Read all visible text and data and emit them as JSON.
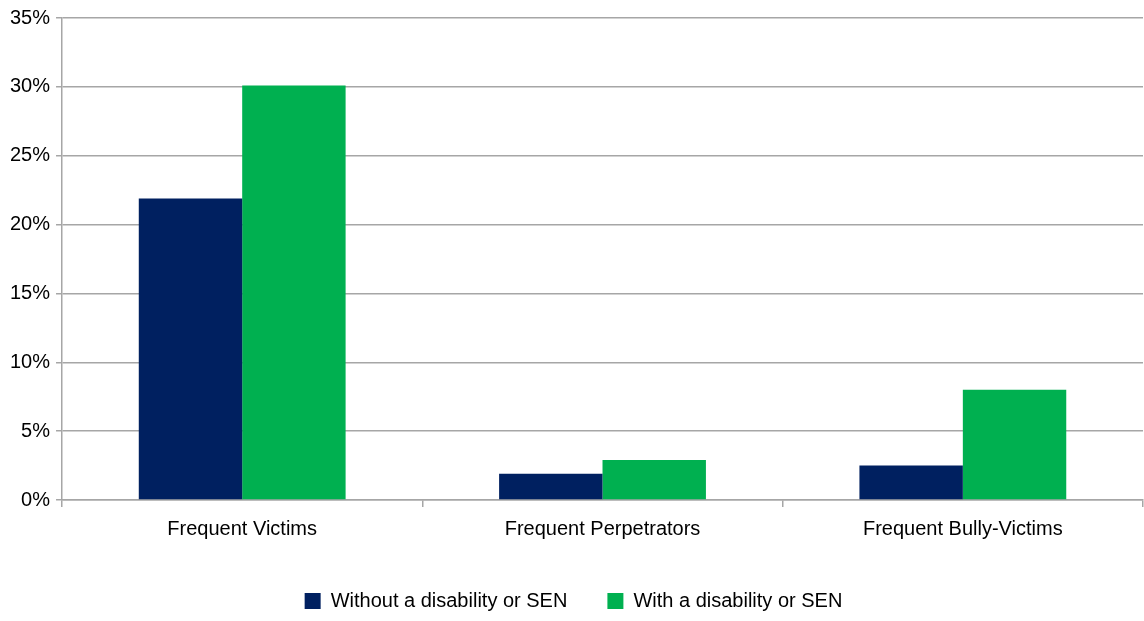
{
  "chart_data": {
    "type": "bar",
    "categories": [
      "Frequent Victims",
      "Frequent Perpetrators",
      "Frequent Bully-Victims"
    ],
    "series": [
      {
        "name": "Without a disability or SEN",
        "color": "#002060",
        "values": [
          21.9,
          1.9,
          2.5
        ]
      },
      {
        "name": "With a disability or SEN",
        "color": "#00b050",
        "values": [
          30.1,
          2.9,
          8.0
        ]
      }
    ],
    "ylim": [
      0,
      35
    ],
    "yticks": [
      {
        "value": 0,
        "label": "0%"
      },
      {
        "value": 5,
        "label": "5%"
      },
      {
        "value": 10,
        "label": "10%"
      },
      {
        "value": 15,
        "label": "15%"
      },
      {
        "value": 20,
        "label": "20%"
      },
      {
        "value": 25,
        "label": "25%"
      },
      {
        "value": 30,
        "label": "30%"
      },
      {
        "value": 35,
        "label": "35%"
      }
    ],
    "grid": "y",
    "legend": "bottom"
  }
}
